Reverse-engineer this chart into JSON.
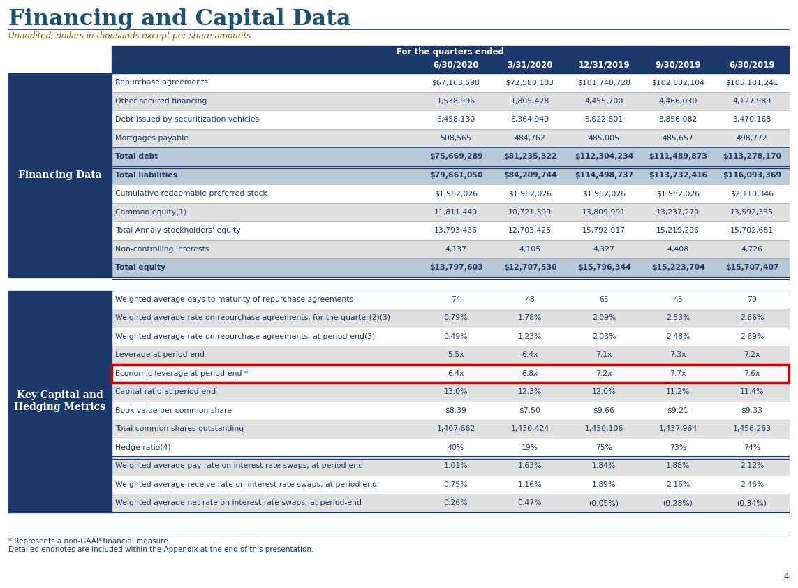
{
  "title": "Financing and Capital Data",
  "subtitle": "Unaudited, dollars in thousands except per share amounts",
  "header_label": "For the quarters ended",
  "columns": [
    "6/30/2020",
    "3/31/2020",
    "12/31/2019",
    "9/30/2019",
    "6/30/2019"
  ],
  "section1_label": "Financing Data",
  "section1_rows": [
    [
      "Repurchase agreements",
      "$67,163,598",
      "$72,580,183",
      "$101,740,728",
      "$102,682,104",
      "$105,181,241"
    ],
    [
      "Other secured financing",
      "1,538,996",
      "1,805,428",
      "4,455,700",
      "4,466,030",
      "4,127,989"
    ],
    [
      "Debt issued by securitization vehicles",
      "6,458,130",
      "6,364,949",
      "5,622,801",
      "3,856,082",
      "3,470,168"
    ],
    [
      "Mortgages payable",
      "508,565",
      "484,762",
      "485,005",
      "485,657",
      "498,772"
    ],
    [
      "Total debt",
      "$75,669,289",
      "$81,235,322",
      "$112,304,234",
      "$111,489,873",
      "$113,278,170"
    ],
    [
      "Total liabilities",
      "$79,661,050",
      "$84,209,744",
      "$114,498,737",
      "$113,732,416",
      "$116,093,369"
    ],
    [
      "Cumulative redeemable preferred stock",
      "$1,982,026",
      "$1,982,026",
      "$1,982,026",
      "$1,982,026",
      "$2,110,346"
    ],
    [
      "Common equity(1)",
      "11,811,440",
      "10,721,399",
      "13,809,991",
      "13,237,270",
      "13,592,335"
    ],
    [
      "Total Annaly stockholders' equity",
      "13,793,466",
      "12,703,425",
      "15,792,017",
      "15,219,296",
      "15,702,681"
    ],
    [
      "Non-controlling interests",
      "4,137",
      "4,105",
      "4,327",
      "4,408",
      "4,726"
    ],
    [
      "Total equity",
      "$13,797,603",
      "$12,707,530",
      "$15,796,344",
      "$15,223,704",
      "$15,707,407"
    ]
  ],
  "section2_label": "Key Capital and\nHedging Metrics",
  "section2_rows": [
    [
      "Weighted average days to maturity of repurchase agreements",
      "74",
      "48",
      "65",
      "45",
      "70"
    ],
    [
      "Weighted average rate on repurchase agreements, for the quarter(2)(3)",
      "0.79%",
      "1.78%",
      "2.09%",
      "2.53%",
      "2.66%"
    ],
    [
      "Weighted average rate on repurchase agreements, at period-end(3)",
      "0.49%",
      "1.23%",
      "2.03%",
      "2.48%",
      "2.69%"
    ],
    [
      "Leverage at period-end",
      "5.5x",
      "6.4x",
      "7.1x",
      "7.3x",
      "7.2x"
    ],
    [
      "Economic leverage at period-end *",
      "6.4x",
      "6.8x",
      "7.2x",
      "7.7x",
      "7.6x"
    ],
    [
      "Capital ratio at period-end",
      "13.0%",
      "12.3%",
      "12.0%",
      "11.2%",
      "11.4%"
    ],
    [
      "Book value per common share",
      "$8.39",
      "$7.50",
      "$9.66",
      "$9.21",
      "$9.33"
    ],
    [
      "Total common shares outstanding",
      "1,407,662",
      "1,430,424",
      "1,430,106",
      "1,437,964",
      "1,456,263"
    ],
    [
      "Hedge ratio(4)",
      "40%",
      "19%",
      "75%",
      "73%",
      "74%"
    ],
    [
      "Weighted average pay rate on interest rate swaps, at period-end",
      "1.01%",
      "1.63%",
      "1.84%",
      "1.88%",
      "2.12%"
    ],
    [
      "Weighted average receive rate on interest rate swaps, at period-end",
      "0.75%",
      "1.16%",
      "1.89%",
      "2.16%",
      "2.46%"
    ],
    [
      "Weighted average net rate on interest rate swaps, at period-end",
      "0.26%",
      "0.47%",
      "(0.05%)",
      "(0.28%)",
      "(0.34%)"
    ]
  ],
  "footnote1": "* Represents a non-GAAP financial measure.",
  "footnote2": "Detailed endnotes are included within the Appendix at the end of this presentation.",
  "page_number": "4",
  "colors": {
    "title": "#1A5276",
    "subtitle": "#7D6608",
    "header_bg": "#1B3A6B",
    "header_text": "#FFFFFF",
    "section_label_bg": "#1B3A6B",
    "section_label_text": "#FFFFFF",
    "row_odd_bg": "#FFFFFF",
    "row_even_bg": "#E0E0E0",
    "row_text": "#1B3A6B",
    "bold_row_bg": "#B8C9D8",
    "border_color": "#1B3A6B",
    "highlight_border": "#CC0000",
    "highlight_bg": "#F8F8F8",
    "footnote_text": "#1B3A6B"
  },
  "bold_rows_section1": [
    4,
    5,
    10
  ],
  "highlight_row_section2": 4,
  "double_line_rows_section2": [
    8,
    11
  ]
}
